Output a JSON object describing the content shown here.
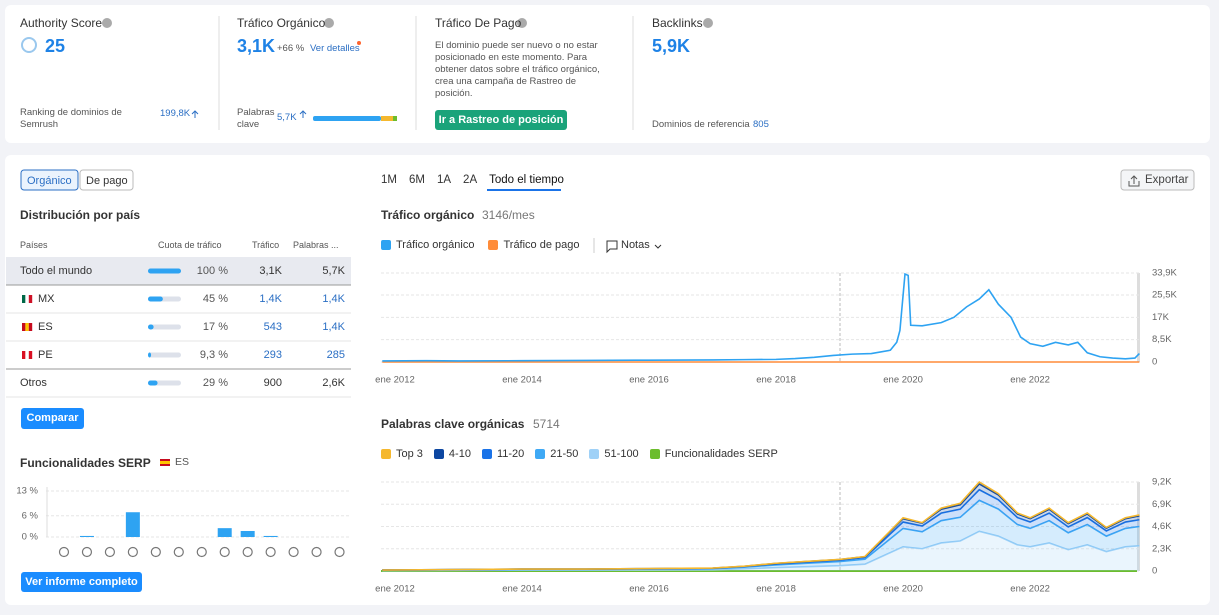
{
  "metrics": {
    "authority": {
      "title": "Authority Score",
      "value": 25,
      "rank_label": "Ranking de dominios de Semrush",
      "rank": "199,8K"
    },
    "organic": {
      "title": "Tráfico Orgánico",
      "value": "3,1K",
      "change": "+66 %",
      "link": "Ver detalles",
      "keywords_label": "Palabras clave",
      "keywords": "5,7K"
    },
    "paid": {
      "title": "Tráfico De Pago",
      "text": "El dominio puede ser nuevo o no estar posicionado en este momento. Para obtener datos sobre el tráfico orgánico, crea una campaña de Rastreo de posición.",
      "button": "Ir a Rastreo de posición"
    },
    "backlinks": {
      "title": "Backlinks",
      "value": "5,9K",
      "ref_label": "Dominios de referencia",
      "ref": "805"
    }
  },
  "tabs": [
    "Orgánico",
    "De pago"
  ],
  "country": {
    "title": "Distribución por país",
    "headers": [
      "Países",
      "Cuota de tráfico",
      "Tráfico",
      "Palabras ..."
    ],
    "rows": [
      {
        "name": "Todo el mundo",
        "share": {
          "value": 100,
          "label": "100 %"
        },
        "traffic": "3,1K",
        "keywords": "5,7K"
      },
      {
        "name": "MX",
        "share": {
          "value": 45,
          "label": "45 %"
        },
        "traffic": "1,4K",
        "keywords": "1,4K"
      },
      {
        "name": "ES",
        "share": {
          "value": 17,
          "label": "17 %"
        },
        "traffic": "543",
        "keywords": "1,4K"
      },
      {
        "name": "PE",
        "share": {
          "value": 9.3,
          "label": "9,3 %"
        },
        "traffic": "293",
        "keywords": "285"
      },
      {
        "name": "Otros",
        "share": {
          "value": 29,
          "label": "29 %"
        },
        "traffic": "900",
        "keywords": "2,6K"
      }
    ],
    "compare": "Comparar"
  },
  "serp": {
    "type": "bar",
    "title": "Funcionalidades SERP",
    "db": "ES",
    "categories": [
      null,
      null,
      null,
      null,
      null,
      null,
      null,
      null,
      null,
      null,
      null,
      null,
      null
    ],
    "values": [
      0,
      0.3,
      0,
      7,
      0,
      0,
      0,
      2.5,
      1.7,
      0.3,
      0,
      0,
      0
    ],
    "color": "#2ea3f2",
    "ylim": [
      0,
      13
    ],
    "yticks": [
      {
        "value": 0,
        "label": "0 %"
      },
      {
        "value": 6,
        "label": "6 %"
      },
      {
        "value": 13,
        "label": "13 %"
      }
    ],
    "button": "Ver informe completo"
  },
  "periods": [
    "1M",
    "6M",
    "1A",
    "2A",
    "Todo el tiempo"
  ],
  "export": "Exportar",
  "traffic_chart": {
    "type": "line",
    "title": "Tráfico orgánico",
    "subtitle": "3146/mes",
    "notes": "Notas",
    "x": [
      2011.8,
      2012.5,
      2013,
      2014,
      2015,
      2016,
      2017,
      2017.5,
      2018,
      2018.3,
      2018.6,
      2018.9,
      2019.2,
      2019.5,
      2019.8,
      2019.9,
      2019.95,
      2020.03,
      2020.08,
      2020.12,
      2020.3,
      2020.6,
      2020.8,
      2021.0,
      2021.2,
      2021.35,
      2021.5,
      2021.7,
      2021.85,
      2022.0,
      2022.2,
      2022.4,
      2022.6,
      2022.75,
      2022.9,
      2023.1,
      2023.3,
      2023.5,
      2023.65,
      2023.72
    ],
    "series": [
      {
        "name": "Tráfico orgánico",
        "color": "#2ea3f2",
        "values": [
          400,
          500,
          400,
          500,
          600,
          700,
          800,
          900,
          1000,
          1300,
          1800,
          2500,
          3000,
          3200,
          4500,
          7500,
          12000,
          33500,
          33000,
          14000,
          13800,
          15000,
          17000,
          21000,
          24000,
          27500,
          22000,
          17000,
          9500,
          7000,
          6000,
          7500,
          6500,
          7500,
          3500,
          2000,
          1500,
          1200,
          1500,
          3200
        ]
      },
      {
        "name": "Tráfico de pago",
        "color": "#ff8c39",
        "values": [
          0,
          0,
          0,
          0,
          0,
          0,
          0,
          0,
          0,
          0,
          0,
          0,
          0,
          0,
          0,
          0,
          0,
          0,
          0,
          0,
          0,
          0,
          0,
          0,
          0,
          0,
          0,
          0,
          0,
          0,
          0,
          0,
          0,
          0,
          0,
          0,
          0,
          0,
          0,
          0
        ]
      }
    ],
    "xlim": [
      2011.78,
      2023.73
    ],
    "xticks": [
      {
        "value": 2012,
        "label": "ene 2012"
      },
      {
        "value": 2014,
        "label": "ene 2014"
      },
      {
        "value": 2016,
        "label": "ene 2016"
      },
      {
        "value": 2018,
        "label": "ene 2018"
      },
      {
        "value": 2020,
        "label": "ene 2020"
      },
      {
        "value": 2022,
        "label": "ene 2022"
      }
    ],
    "ylim": [
      0,
      33900
    ],
    "yticks": [
      0,
      {
        "value": 8500,
        "label": "8,5K"
      },
      {
        "value": 17000,
        "label": "17K"
      },
      {
        "value": 25500,
        "label": "25,5K"
      },
      {
        "value": 33900,
        "label": "33,9K"
      }
    ],
    "grid": true
  },
  "keywords_chart": {
    "type": "area",
    "stacked": true,
    "title": "Palabras clave orgánicas",
    "subtitle": 5714,
    "features_label": "Funcionalidades SERP",
    "features_color": "#6cbd2d",
    "x": [
      2011.8,
      2013,
      2014,
      2015,
      2016,
      2017,
      2017.5,
      2018,
      2018.5,
      2019,
      2019.4,
      2019.7,
      2020,
      2020.3,
      2020.6,
      2020.9,
      2021.2,
      2021.5,
      2021.8,
      2022,
      2022.3,
      2022.6,
      2022.9,
      2023.2,
      2023.5,
      2023.72
    ],
    "series": [
      {
        "name": "Top 3",
        "color": "#f5b82e",
        "values": [
          0,
          2,
          3,
          3,
          5,
          5,
          10,
          15,
          15,
          15,
          20,
          60,
          90,
          50,
          120,
          160,
          200,
          140,
          100,
          90,
          120,
          100,
          100,
          70,
          90,
          100
        ]
      },
      {
        "name": "4-10",
        "color": "#0d47a1",
        "values": [
          5,
          8,
          12,
          12,
          15,
          20,
          35,
          55,
          65,
          75,
          80,
          220,
          350,
          300,
          400,
          450,
          600,
          500,
          380,
          350,
          400,
          350,
          380,
          290,
          350,
          400
        ]
      },
      {
        "name": "11-20",
        "color": "#1a73e8",
        "values": [
          10,
          15,
          25,
          25,
          30,
          40,
          60,
          100,
          120,
          140,
          180,
          420,
          660,
          600,
          780,
          840,
          1100,
          960,
          720,
          660,
          780,
          600,
          720,
          540,
          660,
          700
        ]
      },
      {
        "name": "21-50",
        "color": "#3fa9f5",
        "values": [
          35,
          55,
          70,
          70,
          90,
          105,
          175,
          280,
          350,
          420,
          520,
          1200,
          1900,
          1750,
          2300,
          2450,
          3200,
          2800,
          2100,
          1900,
          2300,
          1750,
          2100,
          1600,
          1900,
          2000
        ]
      },
      {
        "name": "51-100",
        "color": "#9fd1f7",
        "values": [
          50,
          70,
          90,
          90,
          110,
          130,
          220,
          350,
          450,
          550,
          700,
          1600,
          2500,
          2300,
          2900,
          3100,
          4100,
          3600,
          2700,
          2500,
          2900,
          2200,
          2700,
          2000,
          2500,
          2600
        ]
      }
    ],
    "xlim": [
      2011.78,
      2023.73
    ],
    "xticks": [
      {
        "value": 2012,
        "label": "ene 2012"
      },
      {
        "value": 2014,
        "label": "ene 2014"
      },
      {
        "value": 2016,
        "label": "ene 2016"
      },
      {
        "value": 2018,
        "label": "ene 2018"
      },
      {
        "value": 2020,
        "label": "ene 2020"
      },
      {
        "value": 2022,
        "label": "ene 2022"
      }
    ],
    "ylim": [
      0,
      9200
    ],
    "yticks": [
      0,
      {
        "value": 2300,
        "label": "2,3K"
      },
      {
        "value": 4600,
        "label": "4,6K"
      },
      {
        "value": 6900,
        "label": "6,9K"
      },
      {
        "value": 9200,
        "label": "9,2K"
      }
    ],
    "grid": true
  }
}
